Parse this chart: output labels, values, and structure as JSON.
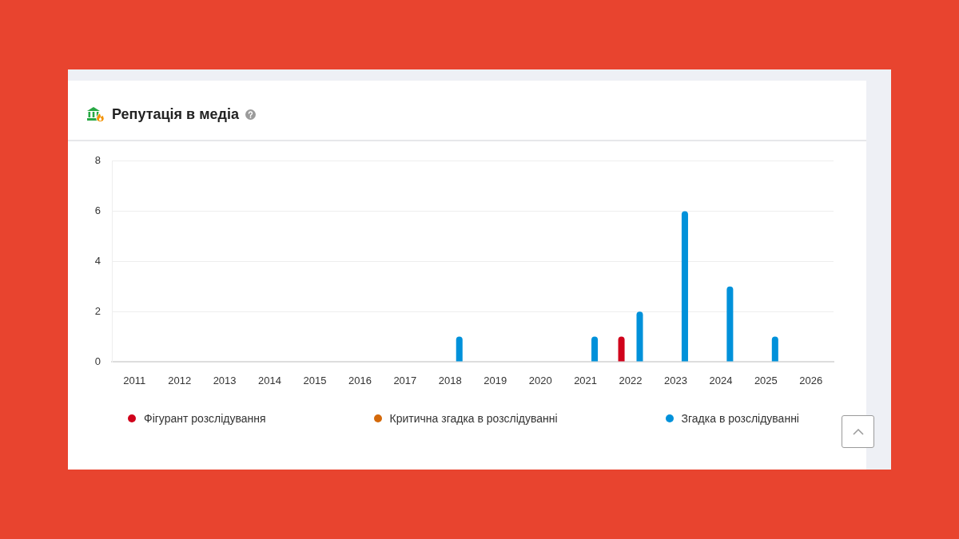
{
  "chart_data": {
    "type": "bar",
    "title": "Репутація в медіа",
    "categories": [
      "2011",
      "2012",
      "2013",
      "2014",
      "2015",
      "2016",
      "2017",
      "2018",
      "2019",
      "2020",
      "2021",
      "2022",
      "2023",
      "2024",
      "2025",
      "2026"
    ],
    "series": [
      {
        "name": "Фігурант розслідування",
        "color": "#d0021b",
        "values": [
          0,
          0,
          0,
          0,
          0,
          0,
          0,
          0,
          0,
          0,
          0,
          1,
          0,
          0,
          0,
          0
        ]
      },
      {
        "name": "Критична згадка в розслідуванні",
        "color": "#d4690a",
        "values": [
          0,
          0,
          0,
          0,
          0,
          0,
          0,
          0,
          0,
          0,
          0,
          0,
          0,
          0,
          0,
          0
        ]
      },
      {
        "name": "Згадка в розслідуванні",
        "color": "#0091da",
        "values": [
          0,
          0,
          0,
          0,
          0,
          0,
          0,
          1,
          0,
          0,
          1,
          2,
          6,
          3,
          1,
          0
        ]
      }
    ],
    "ylim": [
      0,
      8
    ],
    "yticks": [
      0,
      2,
      4,
      6,
      8
    ],
    "grid": "y",
    "legend": "bottom"
  }
}
